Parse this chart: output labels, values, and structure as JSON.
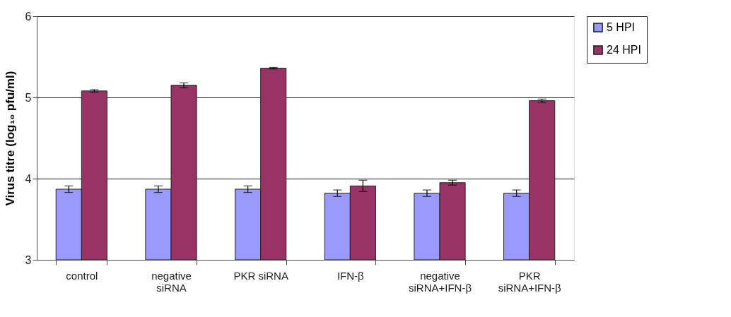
{
  "chart_data": {
    "type": "bar",
    "ylabel": "Virus titre (log₁₀ pfu/ml)",
    "categories": [
      "control",
      "negative\nsiRNA",
      "PKR  siRNA",
      "IFN-β",
      "negative\nsiRNA+IFN-β",
      "PKR\nsiRNA+IFN-β"
    ],
    "series": [
      {
        "name": "5 HPI",
        "color": "#9999ff",
        "values": [
          3.87,
          3.87,
          3.87,
          3.82,
          3.82,
          3.82
        ],
        "errors": [
          0.04,
          0.04,
          0.04,
          0.04,
          0.04,
          0.04
        ]
      },
      {
        "name": "24 HPI",
        "color": "#993366",
        "values": [
          5.08,
          5.15,
          5.36,
          3.91,
          3.95,
          4.96
        ],
        "errors": [
          0.015,
          0.03,
          0.01,
          0.07,
          0.03,
          0.02
        ]
      }
    ],
    "ylim": [
      3,
      6
    ],
    "yticks": [
      3,
      4,
      5,
      6
    ],
    "grid": "y",
    "legend": "top right"
  }
}
